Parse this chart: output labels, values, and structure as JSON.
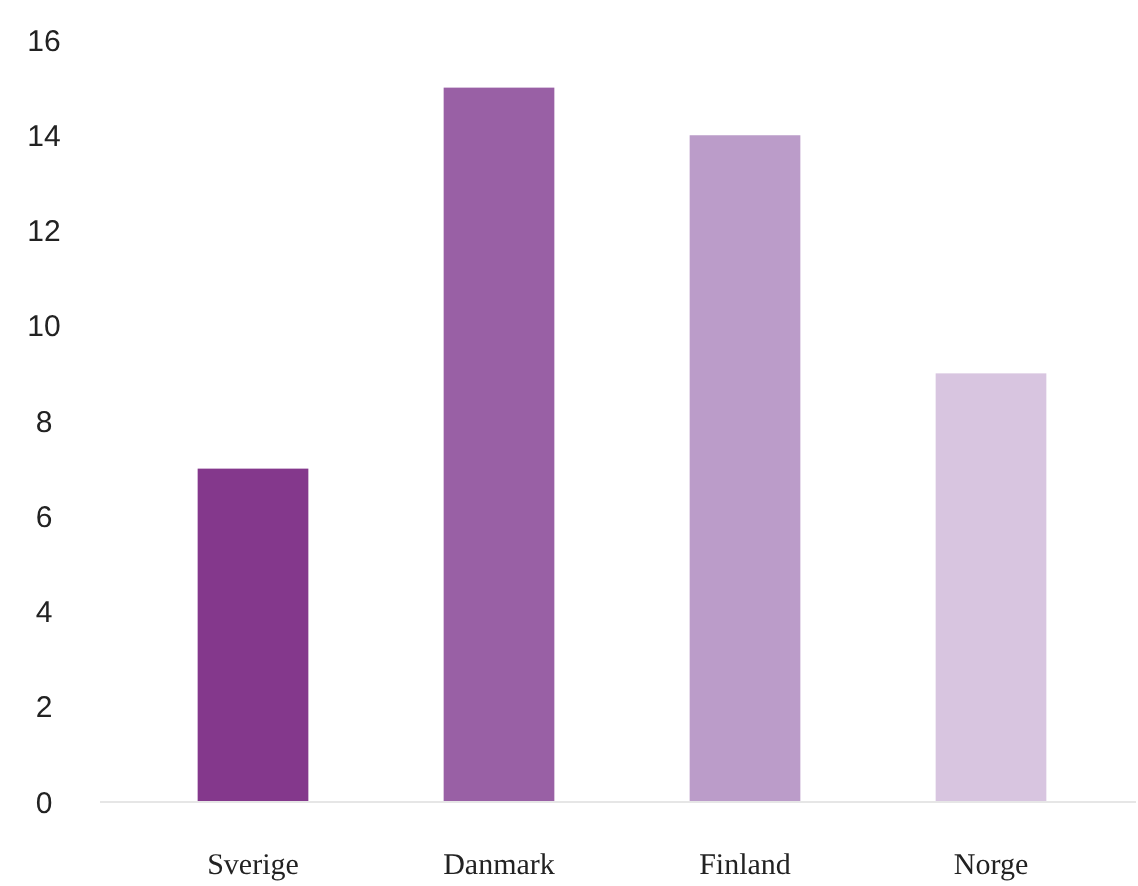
{
  "chart_data": {
    "type": "bar",
    "categories": [
      "Sverige",
      "Danmark",
      "Finland",
      "Norge"
    ],
    "values": [
      7,
      15,
      14,
      9
    ],
    "colors": [
      "#84388c",
      "#9960a5",
      "#bb9cc9",
      "#d8c5e0"
    ],
    "ylim": [
      0,
      16
    ],
    "yticks": [
      0,
      2,
      4,
      6,
      8,
      10,
      12,
      14,
      16
    ],
    "grid": false
  }
}
